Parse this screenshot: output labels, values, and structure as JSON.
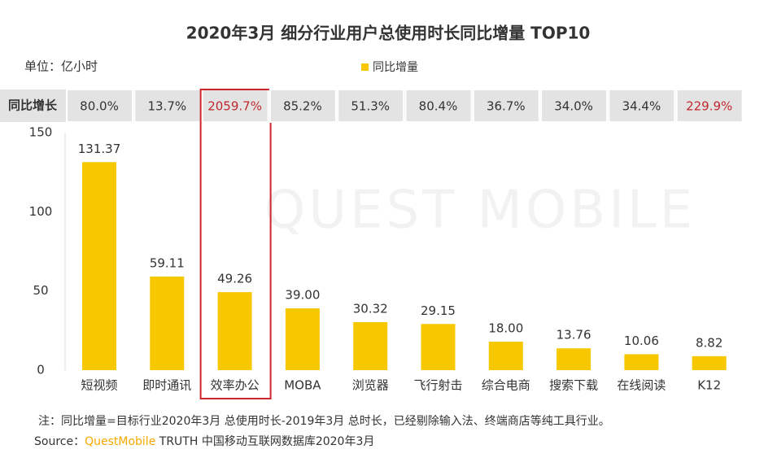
{
  "chart_data": {
    "type": "bar",
    "title": "2020年3月 细分行业用户总使用时长同比增量 TOP10",
    "unit": "单位：亿小时",
    "watermark": "QUEST MOBILE",
    "categories": [
      "短视频",
      "即时通讯",
      "效率办公",
      "MOBA",
      "浏览器",
      "飞行射击",
      "综合电商",
      "搜索下载",
      "在线阅读",
      "K12"
    ],
    "series": [
      {
        "name": "同比增量",
        "color": "#f7c800",
        "values": [
          131.37,
          59.11,
          49.26,
          39.0,
          30.32,
          29.15,
          18.0,
          13.76,
          10.06,
          8.82
        ],
        "value_labels": [
          "131.37",
          "59.11",
          "49.26",
          "39.00",
          "30.32",
          "29.15",
          "18.00",
          "13.76",
          "10.06",
          "8.82"
        ]
      }
    ],
    "growth": {
      "name": "同比增长",
      "values": [
        80.0,
        13.7,
        2059.7,
        85.2,
        51.3,
        80.4,
        36.7,
        34.0,
        34.4,
        229.9
      ],
      "value_labels": [
        "80.0%",
        "13.7%",
        "2059.7%",
        "85.2%",
        "51.3%",
        "80.4%",
        "36.7%",
        "34.0%",
        "34.4%",
        "229.9%"
      ],
      "label_colors": [
        "#333333",
        "#333333",
        "#c0282d",
        "#333333",
        "#333333",
        "#333333",
        "#333333",
        "#333333",
        "#333333",
        "#c0282d"
      ]
    },
    "highlight_box_color": "#d0242b",
    "highlight": "效率办公",
    "ylim": [
      0,
      150
    ],
    "yticks": [
      0,
      50,
      100,
      150
    ],
    "grid": false,
    "note": "注：同比增量=目标行业2020年3月 总使用时长-2019年3月 总时长，已经剔除输入法、终端商店等纯工具行业。",
    "source": {
      "prefix": "Source：",
      "brand": "QuestMobile",
      "brand_color": "#f7a800",
      "rest": " TRUTH 中国移动互联网数据库2020年3月"
    }
  }
}
